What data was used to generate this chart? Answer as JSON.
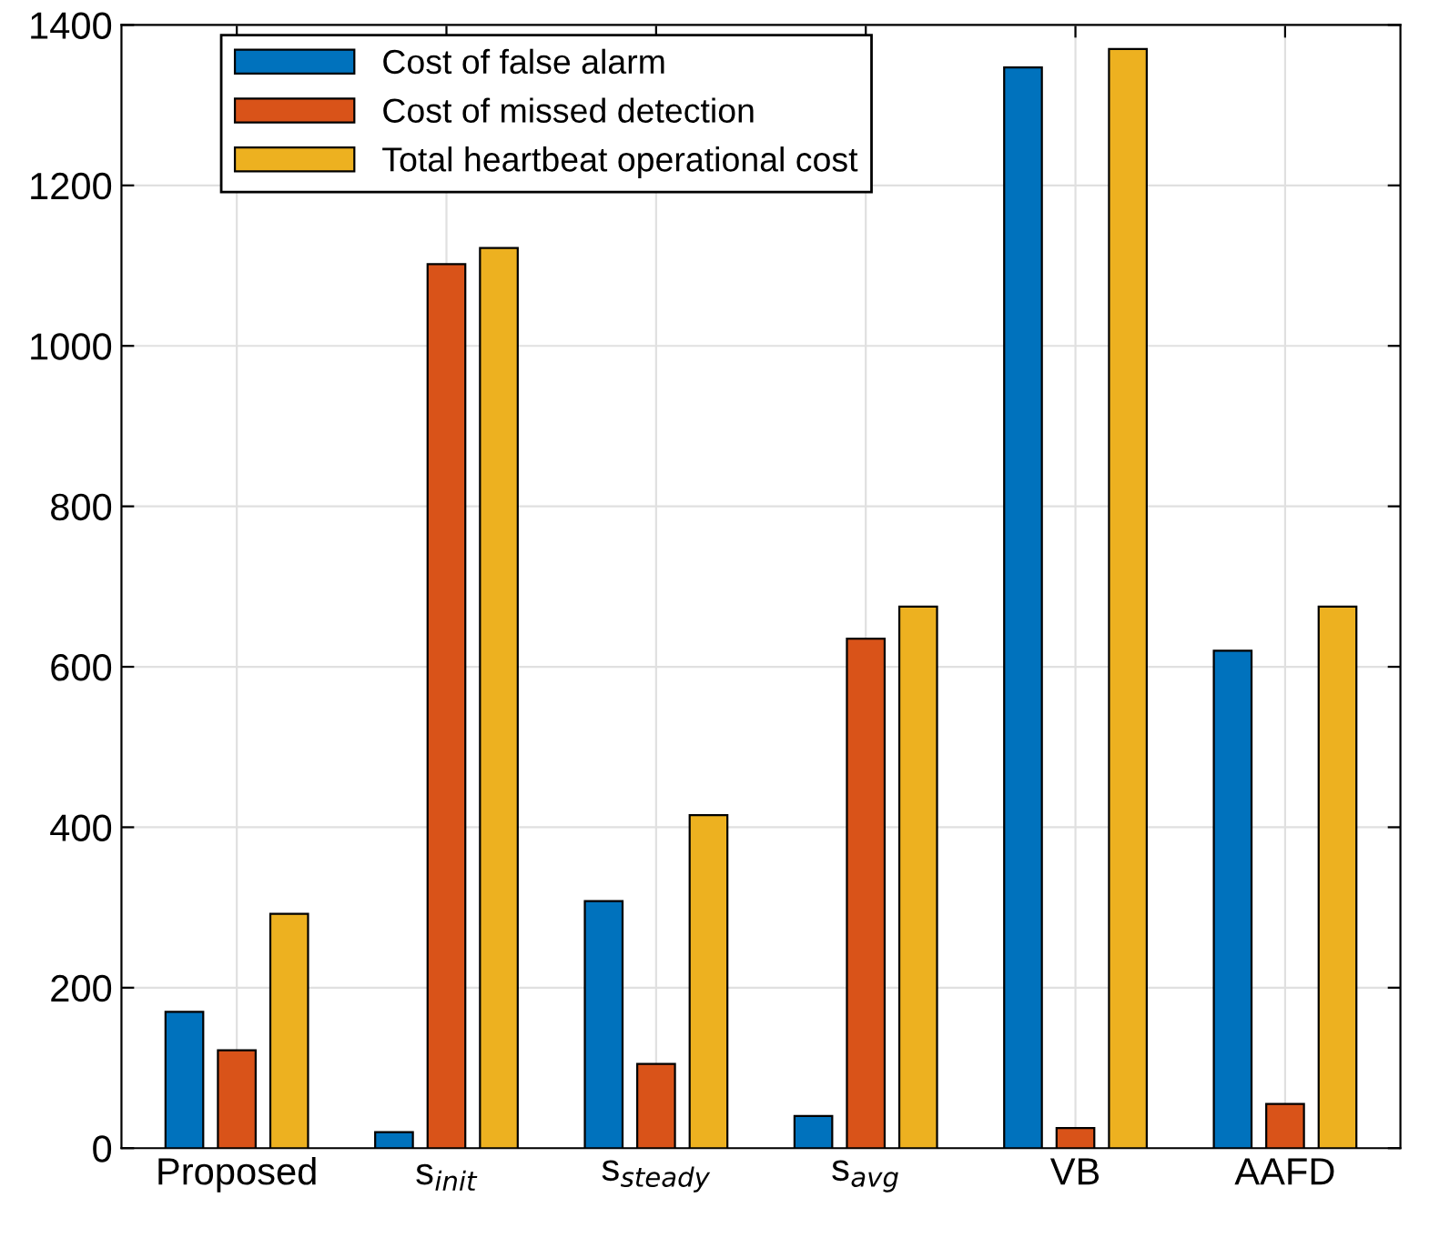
{
  "chart_data": {
    "type": "bar",
    "categories": [
      "Proposed",
      "s$_{init}$",
      "s$_{steady}$",
      "s$_{avg}$",
      "VB",
      "AAFD"
    ],
    "series": [
      {
        "name": "Cost of false alarm",
        "color": "#0072bd",
        "values": [
          170,
          20,
          308,
          40,
          1347,
          620
        ]
      },
      {
        "name": "Cost of missed detection",
        "color": "#d95319",
        "values": [
          122,
          1102,
          105,
          635,
          25,
          55
        ]
      },
      {
        "name": "Total heartbeat operational cost",
        "color": "#edb120",
        "values": [
          292,
          1122,
          415,
          675,
          1370,
          675
        ]
      }
    ],
    "ylim": [
      0,
      1400
    ],
    "yticks": [
      0,
      200,
      400,
      600,
      800,
      1000,
      1200,
      1400
    ],
    "grid": true,
    "legend": "top left"
  }
}
